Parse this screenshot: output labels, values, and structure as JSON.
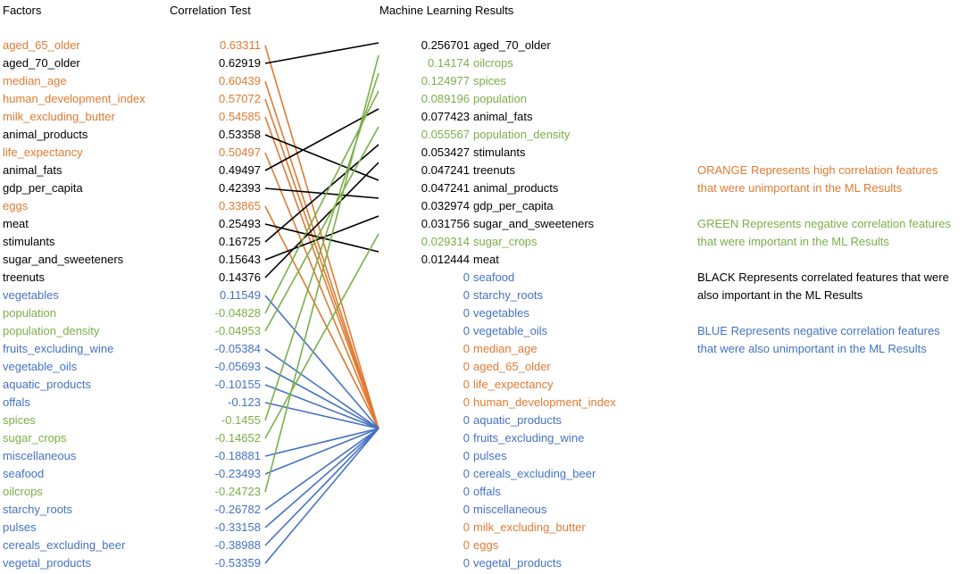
{
  "colors": {
    "orange": "#E07A32",
    "green": "#7AAF48",
    "black": "#000000",
    "blue": "#4472C4"
  },
  "headers": {
    "factors": "Factors",
    "correlation": "Correlation Test",
    "ml": "Machine Learning Results"
  },
  "factors": [
    {
      "name": "aged_65_older",
      "value": "0.63311",
      "color": "orange",
      "target": "aged_65_older"
    },
    {
      "name": "aged_70_older",
      "value": "0.62919",
      "color": "black",
      "target": "aged_70_older"
    },
    {
      "name": "median_age",
      "value": "0.60439",
      "color": "orange",
      "target": "median_age"
    },
    {
      "name": "human_development_index",
      "value": "0.57072",
      "color": "orange",
      "target": "human_development_index"
    },
    {
      "name": "milk_excluding_butter",
      "value": "0.54585",
      "color": "orange",
      "target": "milk_excluding_butter"
    },
    {
      "name": "animal_products",
      "value": "0.53358",
      "color": "black",
      "target": "animal_products"
    },
    {
      "name": "life_expectancy",
      "value": "0.50497",
      "color": "orange",
      "target": "life_expectancy"
    },
    {
      "name": "animal_fats",
      "value": "0.49497",
      "color": "black",
      "target": "animal_fats"
    },
    {
      "name": "gdp_per_capita",
      "value": "0.42393",
      "color": "black",
      "target": "gdp_per_capita"
    },
    {
      "name": "eggs",
      "value": "0.33865",
      "color": "orange",
      "target": "eggs"
    },
    {
      "name": "meat",
      "value": "0.25493",
      "color": "black",
      "target": "meat"
    },
    {
      "name": "stimulants",
      "value": "0.16725",
      "color": "black",
      "target": "stimulants"
    },
    {
      "name": "sugar_and_sweeteners",
      "value": "0.15643",
      "color": "black",
      "target": "sugar_and_sweeteners"
    },
    {
      "name": "treenuts",
      "value": "0.14376",
      "color": "black",
      "target": "treenuts"
    },
    {
      "name": "vegetables",
      "value": "0.11549",
      "color": "blue",
      "target": "vegetables"
    },
    {
      "name": "population",
      "value": "-0.04828",
      "color": "green",
      "target": "population"
    },
    {
      "name": "population_density",
      "value": "-0.04953",
      "color": "green",
      "target": "population_density"
    },
    {
      "name": "fruits_excluding_wine",
      "value": "-0.05384",
      "color": "blue",
      "target": "fruits_excluding_wine"
    },
    {
      "name": "vegetable_oils",
      "value": "-0.05693",
      "color": "blue",
      "target": "vegetable_oils"
    },
    {
      "name": "aquatic_products",
      "value": "-0.10155",
      "color": "blue",
      "target": "aquatic_products"
    },
    {
      "name": "offals",
      "value": "-0.123",
      "color": "blue",
      "target": "offals"
    },
    {
      "name": "spices",
      "value": "-0.1455",
      "color": "green",
      "target": "spices"
    },
    {
      "name": "sugar_crops",
      "value": "-0.14652",
      "color": "green",
      "target": "sugar_crops"
    },
    {
      "name": "miscellaneous",
      "value": "-0.18881",
      "color": "blue",
      "target": "miscellaneous"
    },
    {
      "name": "seafood",
      "value": "-0.23493",
      "color": "blue",
      "target": "seafood"
    },
    {
      "name": "oilcrops",
      "value": "-0.24723",
      "color": "green",
      "target": "oilcrops"
    },
    {
      "name": "starchy_roots",
      "value": "-0.26782",
      "color": "blue",
      "target": "starchy_roots"
    },
    {
      "name": "pulses",
      "value": "-0.33158",
      "color": "blue",
      "target": "pulses"
    },
    {
      "name": "cereals_excluding_beer",
      "value": "-0.38988",
      "color": "blue",
      "target": "cereals_excluding_beer"
    },
    {
      "name": "vegetal_products",
      "value": "-0.53359",
      "color": "blue",
      "target": "vegetal_products"
    }
  ],
  "ml_results": [
    {
      "value": "0.256701",
      "name": "aged_70_older",
      "color": "black"
    },
    {
      "value": "0.14174",
      "name": "oilcrops",
      "color": "green"
    },
    {
      "value": "0.124977",
      "name": "spices",
      "color": "green"
    },
    {
      "value": "0.089196",
      "name": "population",
      "color": "green"
    },
    {
      "value": "0.077423",
      "name": "animal_fats",
      "color": "black"
    },
    {
      "value": "0.055567",
      "name": "population_density",
      "color": "green"
    },
    {
      "value": "0.053427",
      "name": "stimulants",
      "color": "black"
    },
    {
      "value": "0.047241",
      "name": "treenuts",
      "color": "black"
    },
    {
      "value": "0.047241",
      "name": "animal_products",
      "color": "black"
    },
    {
      "value": "0.032974",
      "name": "gdp_per_capita",
      "color": "black"
    },
    {
      "value": "0.031756",
      "name": "sugar_and_sweeteners",
      "color": "black"
    },
    {
      "value": "0.029314",
      "name": "sugar_crops",
      "color": "green"
    },
    {
      "value": "0.012444",
      "name": "meat",
      "color": "black"
    },
    {
      "value": "0",
      "name": "seafood",
      "color": "blue"
    },
    {
      "value": "0",
      "name": "starchy_roots",
      "color": "blue"
    },
    {
      "value": "0",
      "name": "vegetables",
      "color": "blue"
    },
    {
      "value": "0",
      "name": "vegetable_oils",
      "color": "blue"
    },
    {
      "value": "0",
      "name": "median_age",
      "color": "orange"
    },
    {
      "value": "0",
      "name": "aged_65_older",
      "color": "orange"
    },
    {
      "value": "0",
      "name": "life_expectancy",
      "color": "orange"
    },
    {
      "value": "0",
      "name": "human_development_index",
      "color": "orange"
    },
    {
      "value": "0",
      "name": "aquatic_products",
      "color": "blue"
    },
    {
      "value": "0",
      "name": "fruits_excluding_wine",
      "color": "blue"
    },
    {
      "value": "0",
      "name": "pulses",
      "color": "blue"
    },
    {
      "value": "0",
      "name": "cereals_excluding_beer",
      "color": "blue"
    },
    {
      "value": "0",
      "name": "offals",
      "color": "blue"
    },
    {
      "value": "0",
      "name": "miscellaneous",
      "color": "blue"
    },
    {
      "value": "0",
      "name": "milk_excluding_butter",
      "color": "orange"
    },
    {
      "value": "0",
      "name": "eggs",
      "color": "orange"
    },
    {
      "value": "0",
      "name": "vegetal_products",
      "color": "blue"
    }
  ],
  "legend": [
    {
      "color": "orange",
      "lines": [
        "ORANGE Represents high correlation features",
        "that were unimportant in the ML Results"
      ]
    },
    {
      "color": "green",
      "lines": [
        "GREEN Represents negative correlation features",
        "that were important in the ML Results"
      ]
    },
    {
      "color": "black",
      "lines": [
        "BLACK Represents correlated features that were",
        "also important in the ML Results"
      ]
    },
    {
      "color": "blue",
      "lines": [
        "BLUE Represents negative correlation features",
        "that were also unimportant in the ML Results"
      ]
    }
  ]
}
